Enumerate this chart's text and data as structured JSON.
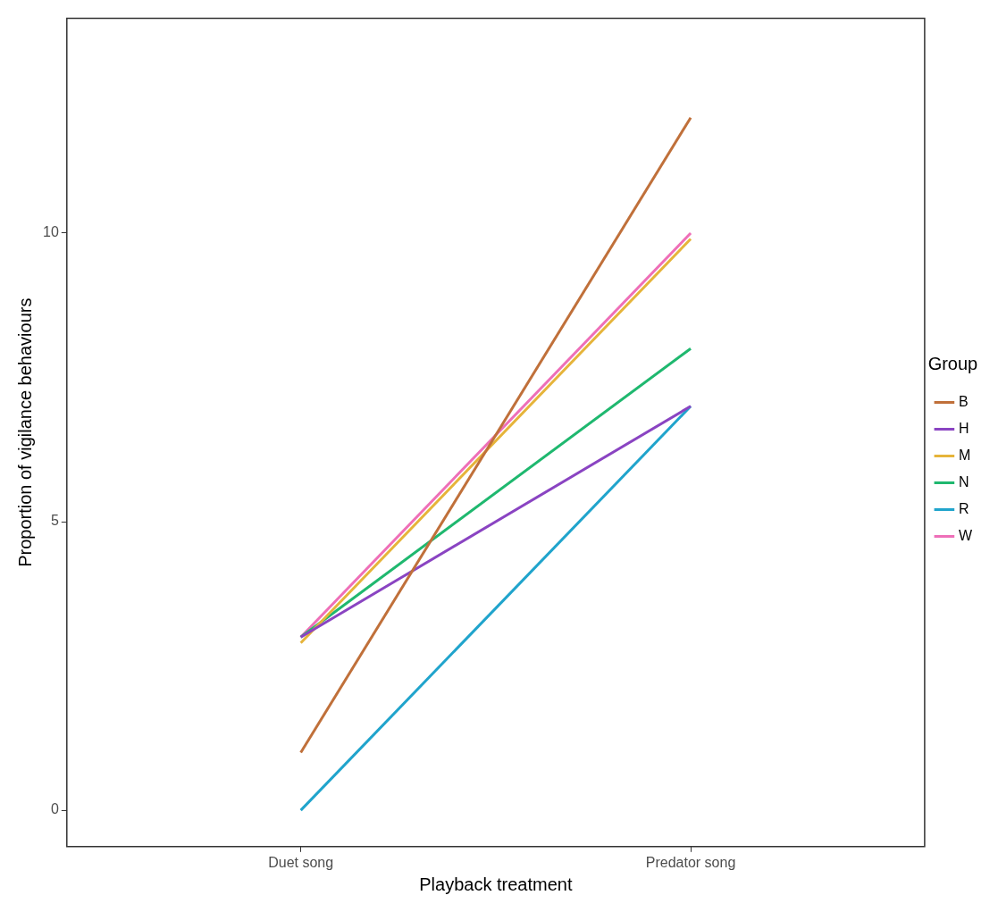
{
  "chart_data": {
    "type": "line",
    "xlabel": "Playback treatment",
    "ylabel": "Proportion of vigilance behaviours",
    "legend_title": "Group",
    "categories": [
      "Duet song",
      "Predator song"
    ],
    "series": [
      {
        "name": "B",
        "color": "#c0703a",
        "values": [
          1,
          12
        ]
      },
      {
        "name": "H",
        "color": "#8a44c2",
        "values": [
          3,
          7
        ]
      },
      {
        "name": "M",
        "color": "#e6b43a",
        "values": [
          2.9,
          9.9
        ]
      },
      {
        "name": "N",
        "color": "#1fb86f",
        "values": [
          3,
          8
        ]
      },
      {
        "name": "R",
        "color": "#20a4cc",
        "values": [
          0,
          7
        ]
      },
      {
        "name": "W",
        "color": "#ee6fb8",
        "values": [
          3,
          10
        ]
      }
    ],
    "ylim": [
      -0.63,
      13.72
    ],
    "yticks": [
      0,
      5,
      10
    ],
    "grid": false,
    "legend": "right",
    "marker": "none",
    "line_style": "solid"
  }
}
